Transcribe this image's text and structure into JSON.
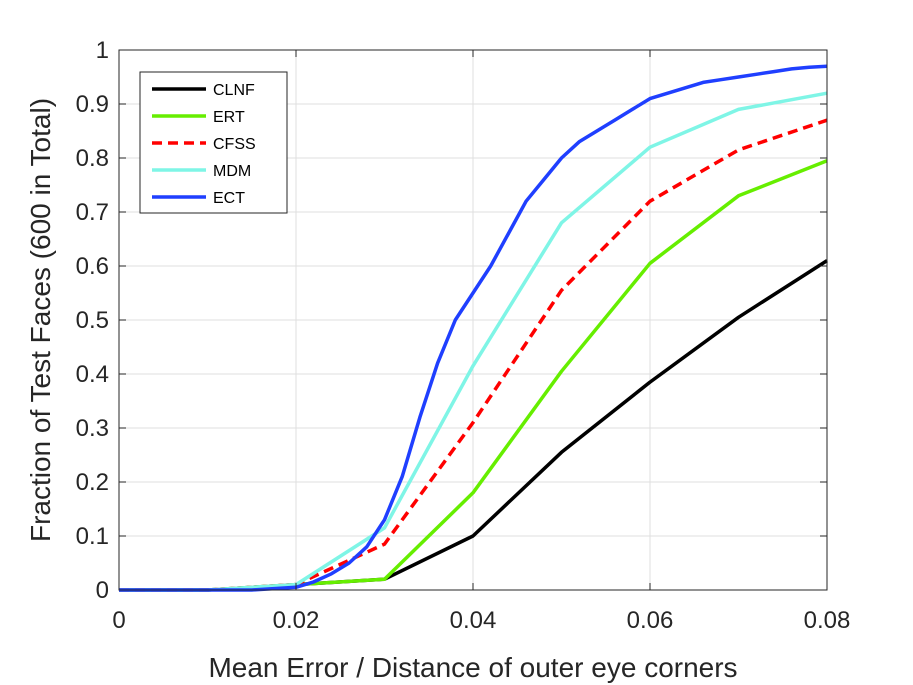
{
  "chart_data": {
    "type": "line",
    "title": "",
    "xlabel": "Mean Error / Distance of outer eye corners",
    "ylabel": "Fraction of Test Faces (600 in Total)",
    "xlim": [
      0,
      0.08
    ],
    "ylim": [
      0,
      1
    ],
    "grid": true,
    "legend_position": "top-left",
    "x_ticks": [
      0,
      0.02,
      0.04,
      0.06,
      0.08
    ],
    "x_tick_labels": [
      "0",
      "0.02",
      "0.04",
      "0.06",
      "0.08"
    ],
    "y_ticks": [
      0,
      0.1,
      0.2,
      0.3,
      0.4,
      0.5,
      0.6,
      0.7,
      0.8,
      0.9,
      1
    ],
    "y_tick_labels": [
      "0",
      "0.1",
      "0.2",
      "0.3",
      "0.4",
      "0.5",
      "0.6",
      "0.7",
      "0.8",
      "0.9",
      "1"
    ],
    "series": [
      {
        "name": "CLNF",
        "color": "#000000",
        "dash": "solid",
        "x": [
          0,
          0.01,
          0.02,
          0.03,
          0.04,
          0.05,
          0.06,
          0.07,
          0.08
        ],
        "y": [
          0,
          0,
          0.01,
          0.02,
          0.1,
          0.255,
          0.385,
          0.505,
          0.61
        ]
      },
      {
        "name": "ERT",
        "color": "#66ee00",
        "dash": "solid",
        "x": [
          0,
          0.01,
          0.02,
          0.03,
          0.04,
          0.05,
          0.06,
          0.07,
          0.08
        ],
        "y": [
          0,
          0,
          0.01,
          0.02,
          0.18,
          0.405,
          0.605,
          0.73,
          0.795
        ]
      },
      {
        "name": "CFSS",
        "color": "#ff0000",
        "dash": "dashed",
        "x": [
          0,
          0.01,
          0.02,
          0.03,
          0.04,
          0.05,
          0.06,
          0.07,
          0.08
        ],
        "y": [
          0,
          0,
          0.01,
          0.085,
          0.31,
          0.555,
          0.72,
          0.815,
          0.87
        ]
      },
      {
        "name": "MDM",
        "color": "#7ff5e6",
        "dash": "solid",
        "x": [
          0,
          0.01,
          0.02,
          0.03,
          0.04,
          0.05,
          0.06,
          0.07,
          0.08
        ],
        "y": [
          0,
          0,
          0.01,
          0.115,
          0.415,
          0.68,
          0.82,
          0.89,
          0.92
        ]
      },
      {
        "name": "ECT",
        "color": "#1f3fff",
        "dash": "solid",
        "x": [
          0,
          0.01,
          0.015,
          0.02,
          0.022,
          0.024,
          0.026,
          0.028,
          0.03,
          0.032,
          0.034,
          0.036,
          0.038,
          0.04,
          0.042,
          0.044,
          0.046,
          0.048,
          0.05,
          0.052,
          0.054,
          0.056,
          0.058,
          0.06,
          0.062,
          0.064,
          0.066,
          0.068,
          0.07,
          0.072,
          0.074,
          0.076,
          0.078,
          0.08
        ],
        "y": [
          0,
          0,
          0,
          0.005,
          0.015,
          0.03,
          0.05,
          0.08,
          0.13,
          0.21,
          0.32,
          0.42,
          0.5,
          0.55,
          0.6,
          0.66,
          0.72,
          0.76,
          0.8,
          0.83,
          0.85,
          0.87,
          0.89,
          0.91,
          0.92,
          0.93,
          0.94,
          0.945,
          0.95,
          0.955,
          0.96,
          0.965,
          0.968,
          0.97
        ]
      }
    ]
  }
}
